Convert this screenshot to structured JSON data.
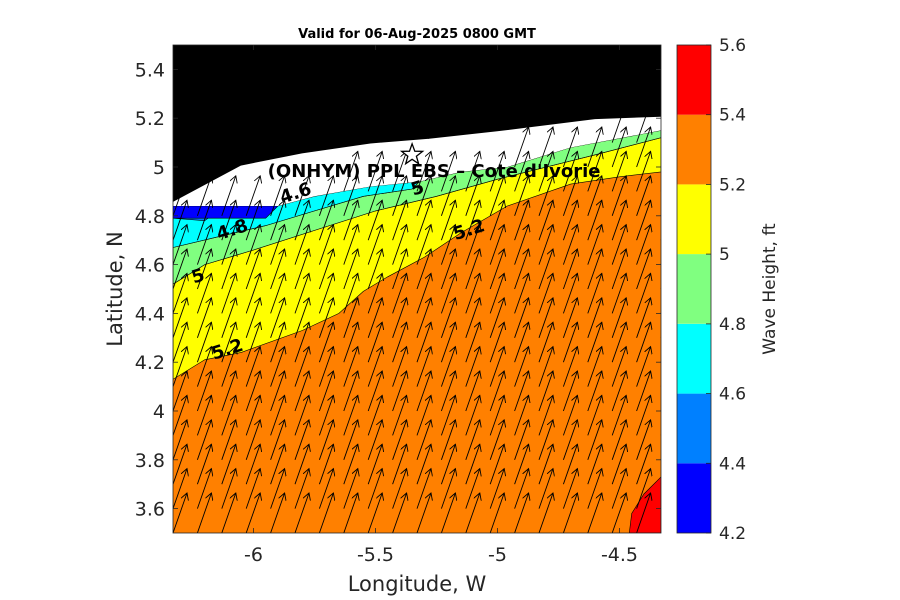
{
  "chart_data": {
    "type": "contourf",
    "title": "Valid for 06-Aug-2025 0800 GMT",
    "xlabel": "Longitude, W",
    "ylabel": "Latitude, N",
    "xlim": [
      -6.33,
      -4.33
    ],
    "ylim": [
      3.5,
      5.5
    ],
    "x_ticks": [
      "-6",
      "-5.5",
      "-5",
      "-4.5"
    ],
    "y_ticks": [
      "3.6",
      "3.8",
      "4",
      "4.2",
      "4.4",
      "4.6",
      "4.8",
      "5",
      "5.2",
      "5.4"
    ],
    "grid": false,
    "colorbar": {
      "label": "Wave Height, ft",
      "ticks": [
        "4.2",
        "4.4",
        "4.6",
        "4.8",
        "5",
        "5.2",
        "5.4",
        "5.6"
      ],
      "levels": [
        4.2,
        4.4,
        4.6,
        4.8,
        5.0,
        5.2,
        5.4,
        5.6
      ],
      "colors": [
        "#0000ff",
        "#0080ff",
        "#00ffff",
        "#80ff80",
        "#ffff00",
        "#ff8000",
        "#ff0000"
      ]
    },
    "contour_labels": [
      {
        "text": "4.6",
        "lon": -5.82,
        "lat": 4.87
      },
      {
        "text": "4.8",
        "lon": -6.08,
        "lat": 4.72
      },
      {
        "text": "5",
        "lon": -6.22,
        "lat": 4.53
      },
      {
        "text": "5",
        "lon": -5.32,
        "lat": 4.89
      },
      {
        "text": "5.2",
        "lon": -5.11,
        "lat": 4.72
      },
      {
        "text": "5.2",
        "lon": -6.1,
        "lat": 4.23
      }
    ],
    "regions": {
      "land": [
        [
          -6.33,
          5.5
        ],
        [
          -4.33,
          5.5
        ],
        [
          -4.33,
          5.2
        ],
        [
          -4.6,
          5.19
        ],
        [
          -5.0,
          5.14
        ],
        [
          -5.28,
          5.11
        ],
        [
          -5.52,
          5.09
        ],
        [
          -5.8,
          5.05
        ],
        [
          -6.05,
          5.0
        ],
        [
          -6.33,
          4.85
        ]
      ],
      "no_data": [
        [
          -6.33,
          4.85
        ],
        [
          -6.05,
          5.0
        ],
        [
          -5.8,
          5.05
        ],
        [
          -5.52,
          5.09
        ],
        [
          -5.28,
          5.11
        ],
        [
          -5.0,
          5.14
        ],
        [
          -4.6,
          5.19
        ],
        [
          -4.33,
          5.2
        ],
        [
          -4.33,
          5.15
        ],
        [
          -4.7,
          5.08
        ],
        [
          -4.96,
          5.0
        ],
        [
          -5.15,
          4.98
        ],
        [
          -5.32,
          4.94
        ],
        [
          -5.52,
          4.92
        ],
        [
          -5.75,
          4.88
        ],
        [
          -5.9,
          4.84
        ],
        [
          -6.33,
          4.84
        ]
      ],
      "h4_2_4_4": [
        [
          -6.33,
          4.84
        ],
        [
          -5.9,
          4.84
        ],
        [
          -5.95,
          4.79
        ],
        [
          -6.33,
          4.79
        ]
      ],
      "h4_4_4_6": [
        [
          -6.33,
          4.84
        ],
        [
          -6.33,
          4.79
        ],
        [
          -6.2,
          4.78
        ],
        [
          -6.12,
          4.84
        ]
      ],
      "h4_6_4_8": [
        [
          -6.33,
          4.84
        ],
        [
          -5.9,
          4.84
        ],
        [
          -5.75,
          4.88
        ],
        [
          -5.52,
          4.92
        ],
        [
          -5.32,
          4.94
        ],
        [
          -5.35,
          4.91
        ],
        [
          -5.55,
          4.88
        ],
        [
          -5.75,
          4.82
        ],
        [
          -5.95,
          4.76
        ],
        [
          -6.12,
          4.72
        ],
        [
          -6.33,
          4.67
        ]
      ],
      "h4_8_5_0": [
        [
          -6.33,
          4.67
        ],
        [
          -6.12,
          4.72
        ],
        [
          -5.95,
          4.76
        ],
        [
          -5.75,
          4.82
        ],
        [
          -5.55,
          4.88
        ],
        [
          -5.35,
          4.91
        ],
        [
          -5.32,
          4.94
        ],
        [
          -5.15,
          4.98
        ],
        [
          -4.96,
          5.0
        ],
        [
          -4.7,
          5.08
        ],
        [
          -4.33,
          5.15
        ],
        [
          -4.33,
          5.12
        ],
        [
          -4.6,
          5.05
        ],
        [
          -5.0,
          4.95
        ],
        [
          -5.25,
          4.88
        ],
        [
          -5.5,
          4.82
        ],
        [
          -5.75,
          4.74
        ],
        [
          -6.0,
          4.66
        ],
        [
          -6.2,
          4.6
        ],
        [
          -6.33,
          4.52
        ]
      ],
      "h5_0_5_2": [
        [
          -6.33,
          4.52
        ],
        [
          -6.2,
          4.6
        ],
        [
          -6.0,
          4.66
        ],
        [
          -5.75,
          4.74
        ],
        [
          -5.5,
          4.82
        ],
        [
          -5.25,
          4.88
        ],
        [
          -5.0,
          4.95
        ],
        [
          -4.6,
          5.05
        ],
        [
          -4.33,
          5.12
        ],
        [
          -4.33,
          4.98
        ],
        [
          -4.5,
          4.96
        ],
        [
          -4.7,
          4.93
        ],
        [
          -4.96,
          4.84
        ],
        [
          -5.15,
          4.73
        ],
        [
          -5.3,
          4.63
        ],
        [
          -5.45,
          4.55
        ],
        [
          -5.55,
          4.49
        ],
        [
          -5.65,
          4.4
        ],
        [
          -5.8,
          4.33
        ],
        [
          -6.05,
          4.24
        ],
        [
          -6.2,
          4.21
        ],
        [
          -6.33,
          4.13
        ]
      ],
      "h5_4_5_6": [
        [
          -4.33,
          3.73
        ],
        [
          -4.4,
          3.66
        ],
        [
          -4.45,
          3.58
        ],
        [
          -4.46,
          3.5
        ],
        [
          -4.33,
          3.5
        ]
      ],
      "shelf_white": [
        [
          -4.33,
          5.15
        ],
        [
          -4.33,
          5.2
        ],
        [
          -4.36,
          5.2
        ],
        [
          -4.33,
          5.17
        ]
      ]
    },
    "site": {
      "label": "(ONHYM) PPL EBS – Cote d'Ivorie",
      "lon": -5.35,
      "lat": 5.05
    }
  },
  "figure": {
    "background": "#ffffff",
    "land_color": "#000000",
    "no_data_color": "#ffffff"
  }
}
